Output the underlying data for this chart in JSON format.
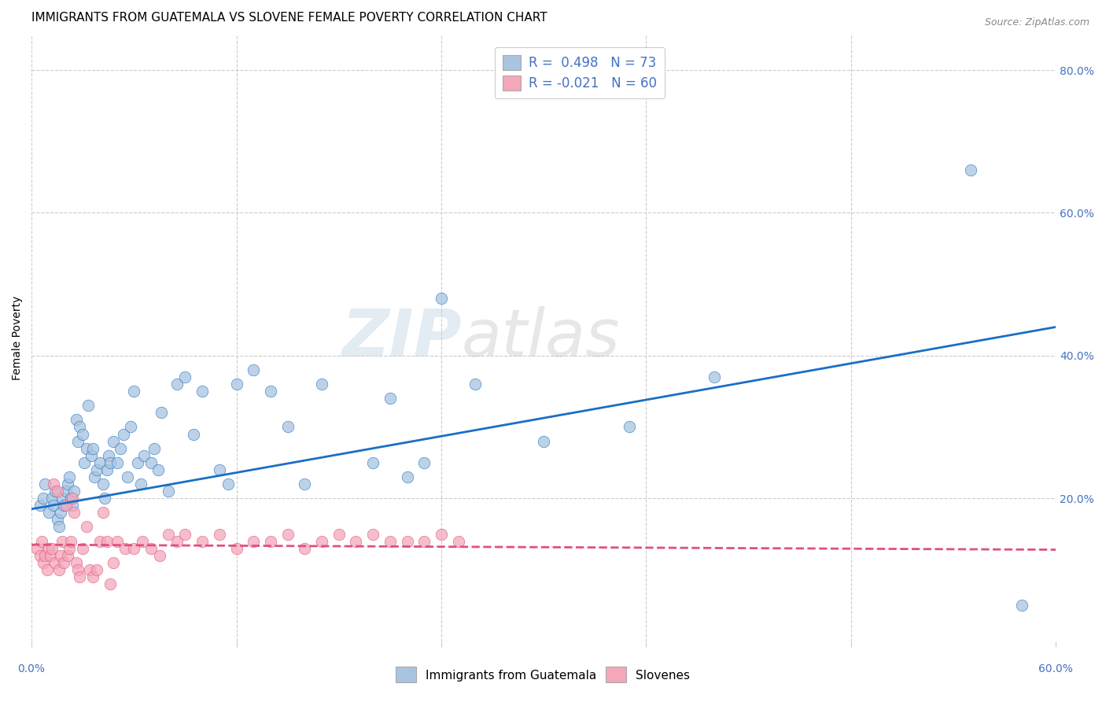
{
  "title": "IMMIGRANTS FROM GUATEMALA VS SLOVENE FEMALE POVERTY CORRELATION CHART",
  "source": "Source: ZipAtlas.com",
  "ylabel": "Female Poverty",
  "y_ticks": [
    0.0,
    0.2,
    0.4,
    0.6,
    0.8
  ],
  "y_tick_labels": [
    "",
    "20.0%",
    "40.0%",
    "60.0%",
    "80.0%"
  ],
  "x_min": 0.0,
  "x_max": 0.6,
  "y_min": 0.0,
  "y_max": 0.85,
  "blue_R": 0.498,
  "blue_N": 73,
  "pink_R": -0.021,
  "pink_N": 60,
  "blue_color": "#a8c4e0",
  "pink_color": "#f4a7b9",
  "blue_line_color": "#1a6fc4",
  "pink_line_color": "#e05080",
  "legend_label_blue": "Immigrants from Guatemala",
  "legend_label_pink": "Slovenes",
  "watermark_zip": "ZIP",
  "watermark_atlas": "atlas",
  "blue_scatter_x": [
    0.005,
    0.007,
    0.008,
    0.01,
    0.012,
    0.013,
    0.014,
    0.015,
    0.016,
    0.017,
    0.018,
    0.019,
    0.02,
    0.021,
    0.022,
    0.023,
    0.024,
    0.025,
    0.026,
    0.027,
    0.028,
    0.03,
    0.031,
    0.032,
    0.033,
    0.035,
    0.036,
    0.037,
    0.038,
    0.04,
    0.042,
    0.043,
    0.044,
    0.045,
    0.046,
    0.048,
    0.05,
    0.052,
    0.054,
    0.056,
    0.058,
    0.06,
    0.062,
    0.064,
    0.066,
    0.07,
    0.072,
    0.074,
    0.076,
    0.08,
    0.085,
    0.09,
    0.095,
    0.1,
    0.11,
    0.115,
    0.12,
    0.13,
    0.14,
    0.15,
    0.16,
    0.17,
    0.2,
    0.21,
    0.22,
    0.23,
    0.24,
    0.26,
    0.3,
    0.35,
    0.4,
    0.55,
    0.58
  ],
  "blue_scatter_y": [
    0.19,
    0.2,
    0.22,
    0.18,
    0.2,
    0.19,
    0.21,
    0.17,
    0.16,
    0.18,
    0.2,
    0.19,
    0.21,
    0.22,
    0.23,
    0.2,
    0.19,
    0.21,
    0.31,
    0.28,
    0.3,
    0.29,
    0.25,
    0.27,
    0.33,
    0.26,
    0.27,
    0.23,
    0.24,
    0.25,
    0.22,
    0.2,
    0.24,
    0.26,
    0.25,
    0.28,
    0.25,
    0.27,
    0.29,
    0.23,
    0.3,
    0.35,
    0.25,
    0.22,
    0.26,
    0.25,
    0.27,
    0.24,
    0.32,
    0.21,
    0.36,
    0.37,
    0.29,
    0.35,
    0.24,
    0.22,
    0.36,
    0.38,
    0.35,
    0.3,
    0.22,
    0.36,
    0.25,
    0.34,
    0.23,
    0.25,
    0.48,
    0.36,
    0.28,
    0.3,
    0.37,
    0.66,
    0.05
  ],
  "pink_scatter_x": [
    0.003,
    0.005,
    0.006,
    0.007,
    0.008,
    0.009,
    0.01,
    0.011,
    0.012,
    0.013,
    0.014,
    0.015,
    0.016,
    0.017,
    0.018,
    0.019,
    0.02,
    0.021,
    0.022,
    0.023,
    0.024,
    0.025,
    0.026,
    0.027,
    0.028,
    0.03,
    0.032,
    0.034,
    0.036,
    0.038,
    0.04,
    0.042,
    0.044,
    0.046,
    0.048,
    0.05,
    0.055,
    0.06,
    0.065,
    0.07,
    0.075,
    0.08,
    0.085,
    0.09,
    0.1,
    0.11,
    0.12,
    0.13,
    0.14,
    0.15,
    0.16,
    0.17,
    0.18,
    0.19,
    0.2,
    0.21,
    0.22,
    0.23,
    0.24,
    0.25
  ],
  "pink_scatter_y": [
    0.13,
    0.12,
    0.14,
    0.11,
    0.12,
    0.1,
    0.13,
    0.12,
    0.13,
    0.22,
    0.11,
    0.21,
    0.1,
    0.12,
    0.14,
    0.11,
    0.19,
    0.12,
    0.13,
    0.14,
    0.2,
    0.18,
    0.11,
    0.1,
    0.09,
    0.13,
    0.16,
    0.1,
    0.09,
    0.1,
    0.14,
    0.18,
    0.14,
    0.08,
    0.11,
    0.14,
    0.13,
    0.13,
    0.14,
    0.13,
    0.12,
    0.15,
    0.14,
    0.15,
    0.14,
    0.15,
    0.13,
    0.14,
    0.14,
    0.15,
    0.13,
    0.14,
    0.15,
    0.14,
    0.15,
    0.14,
    0.14,
    0.14,
    0.15,
    0.14
  ],
  "blue_line_y_start": 0.185,
  "blue_line_y_end": 0.44,
  "pink_line_y_start": 0.135,
  "pink_line_y_end": 0.128,
  "grid_color": "#cccccc",
  "background_color": "#ffffff",
  "title_fontsize": 11,
  "axis_label_color": "#4472c4"
}
